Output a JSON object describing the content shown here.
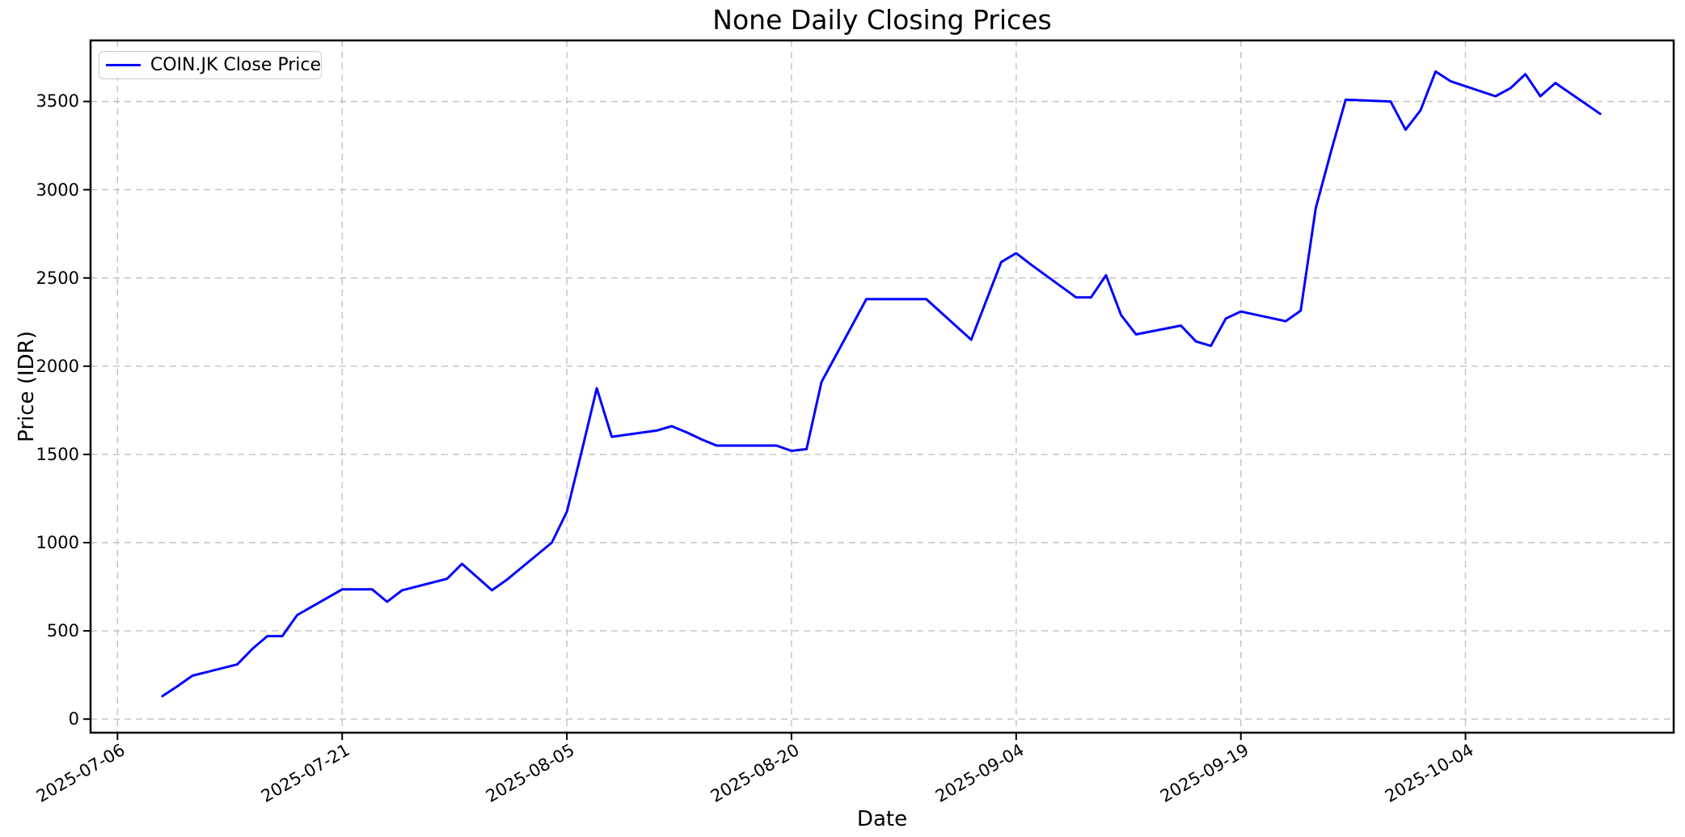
{
  "figure": {
    "title": "None Daily Closing Prices",
    "xlabel": "Date",
    "ylabel": "Price (IDR)",
    "legend": {
      "label": "COIN.JK Close Price"
    }
  },
  "chart_data": {
    "type": "line",
    "title": "None Daily Closing Prices",
    "xlabel": "Date",
    "ylabel": "Price (IDR)",
    "grid": true,
    "grid_style": "dashed",
    "legend_position": "upper left",
    "line_color": "#0000ff",
    "grid_color": "#c2c2c2",
    "x_ticks": [
      "2025-07-06",
      "2025-07-21",
      "2025-08-05",
      "2025-08-20",
      "2025-09-04",
      "2025-09-19",
      "2025-10-04"
    ],
    "y_ticks": [
      0,
      500,
      1000,
      1500,
      2000,
      2500,
      3000,
      3500
    ],
    "xlim_days_offset": [
      -1.8,
      103.9
    ],
    "ylim": [
      -77,
      3846
    ],
    "series": [
      {
        "name": "COIN.JK Close Price",
        "color": "#0000ff",
        "x": [
          "2025-07-09",
          "2025-07-10",
          "2025-07-11",
          "2025-07-14",
          "2025-07-15",
          "2025-07-16",
          "2025-07-17",
          "2025-07-18",
          "2025-07-21",
          "2025-07-22",
          "2025-07-23",
          "2025-07-24",
          "2025-07-25",
          "2025-07-28",
          "2025-07-29",
          "2025-07-30",
          "2025-07-31",
          "2025-08-01",
          "2025-08-04",
          "2025-08-05",
          "2025-08-06",
          "2025-08-07",
          "2025-08-08",
          "2025-08-11",
          "2025-08-12",
          "2025-08-13",
          "2025-08-14",
          "2025-08-15",
          "2025-08-18",
          "2025-08-19",
          "2025-08-20",
          "2025-08-21",
          "2025-08-22",
          "2025-08-25",
          "2025-08-26",
          "2025-08-27",
          "2025-08-28",
          "2025-08-29",
          "2025-09-01",
          "2025-09-02",
          "2025-09-03",
          "2025-09-04",
          "2025-09-05",
          "2025-09-08",
          "2025-09-09",
          "2025-09-10",
          "2025-09-11",
          "2025-09-12",
          "2025-09-15",
          "2025-09-16",
          "2025-09-17",
          "2025-09-18",
          "2025-09-19",
          "2025-09-22",
          "2025-09-23",
          "2025-09-24",
          "2025-09-25",
          "2025-09-26",
          "2025-09-29",
          "2025-09-30",
          "2025-10-01",
          "2025-10-02",
          "2025-10-03",
          "2025-10-06",
          "2025-10-07",
          "2025-10-08",
          "2025-10-09",
          "2025-10-10",
          "2025-10-13"
        ],
        "y": [
          130,
          186,
          246,
          310,
          398,
          470,
          470,
          590,
          735,
          735,
          735,
          665,
          730,
          795,
          880,
          805,
          730,
          790,
          1000,
          1175,
          1520,
          1875,
          1600,
          1635,
          1660,
          1625,
          1585,
          1550,
          1550,
          1550,
          1520,
          1530,
          1910,
          2380,
          2380,
          2380,
          2380,
          2380,
          2150,
          2370,
          2590,
          2640,
          2575,
          2390,
          2390,
          2515,
          2290,
          2180,
          2230,
          2140,
          2115,
          2270,
          2310,
          2255,
          2315,
          2895,
          3210,
          3510,
          3500,
          3340,
          3450,
          3670,
          3615,
          3530,
          3575,
          3655,
          3530,
          3605,
          3430
        ]
      }
    ]
  }
}
